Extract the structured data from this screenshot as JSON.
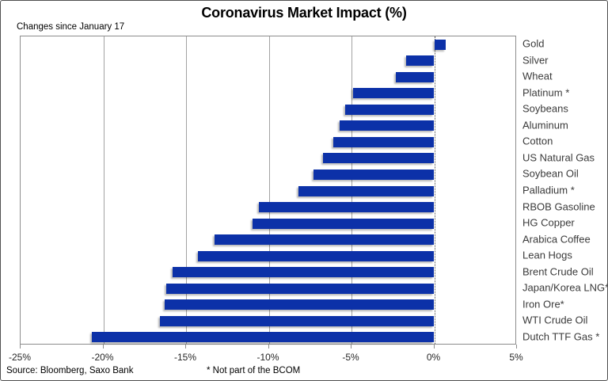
{
  "chart": {
    "title": "Coronavirus Market Impact (%)",
    "subtitle": "Changes since January 17"
  },
  "footer": {
    "source": "Source: Bloomberg, Saxo Bank",
    "note": "* Not part of the BCOM"
  },
  "colors": {
    "bar": "#0c31a8",
    "grid": "#a3a3a3",
    "zero_line": "#4d4d4d",
    "plot_border": "#8c8c8c"
  },
  "chart_data": {
    "type": "bar",
    "orientation": "horizontal",
    "title": "Coronavirus Market Impact (%)",
    "subtitle": "Changes since January 17",
    "xlabel": "",
    "ylabel": "",
    "xlim": [
      -25,
      5
    ],
    "grid": "vertical-gridlines",
    "legend": "none",
    "zero_line": "dotted-black",
    "categories": [
      "Gold",
      "Silver",
      "Wheat",
      "Platinum *",
      "Soybeans",
      "Aluminum",
      "Cotton",
      "US Natural Gas",
      "Soybean Oil",
      "Palladium *",
      "RBOB Gasoline",
      "HG Copper",
      "Arabica Coffee",
      "Lean Hogs",
      "Brent Crude Oil",
      "Japan/Korea LNG*",
      "Iron Ore*",
      "WTI Crude Oil",
      "Dutch TTF Gas *"
    ],
    "values": [
      0.7,
      -1.7,
      -2.3,
      -4.9,
      -5.4,
      -5.7,
      -6.1,
      -6.7,
      -7.3,
      -8.2,
      -10.6,
      -11.0,
      -13.3,
      -14.3,
      -15.8,
      -16.2,
      -16.3,
      -16.6,
      -20.7
    ],
    "xtick_values": [
      -25,
      -20,
      -15,
      -10,
      -5,
      0,
      5
    ],
    "xtick_labels": [
      "-25%",
      "-20%",
      "-15%",
      "-10%",
      "-5%",
      "0%",
      "5%"
    ]
  }
}
